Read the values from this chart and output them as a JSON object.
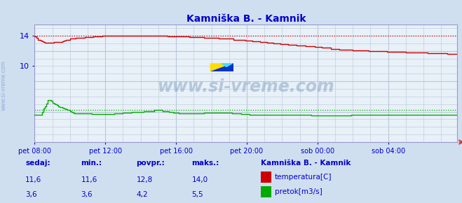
{
  "title": "Kamniška B. - Kamnik",
  "bg_color": "#d0dff0",
  "plot_bg_color": "#e8f0f8",
  "grid_color": "#b8c8d8",
  "x_labels": [
    "pet 08:00",
    "pet 12:00",
    "pet 16:00",
    "pet 20:00",
    "sob 00:00",
    "sob 04:00"
  ],
  "x_ticks_pos": [
    0,
    48,
    96,
    144,
    192,
    240
  ],
  "x_max": 287,
  "y_min": 0,
  "y_max": 15.5,
  "y_ticks": [
    10,
    14
  ],
  "temp_max_line": 14.0,
  "flow_avg_line": 4.2,
  "temp_color": "#cc0000",
  "flow_color": "#00aa00",
  "axis_color": "#9999cc",
  "title_color": "#0000cc",
  "label_color": "#0000cc",
  "watermark": "www.si-vreme.com",
  "legend_title": "Kamniška B. - Kamnik",
  "stats_headers": [
    "sedaj:",
    "min.:",
    "povpr.:",
    "maks.:"
  ],
  "stats_temp": [
    "11,6",
    "11,6",
    "12,8",
    "14,0"
  ],
  "stats_flow": [
    "3,6",
    "3,6",
    "4,2",
    "5,5"
  ],
  "legend_temp": "temperatura[C]",
  "legend_flow": "pretok[m3/s]"
}
